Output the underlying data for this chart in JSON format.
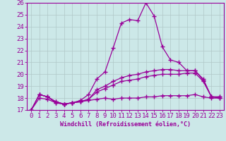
{
  "xlabel": "Windchill (Refroidissement éolien,°C)",
  "bg_color": "#cce8e8",
  "grid_color": "#b0c8c8",
  "line_color": "#990099",
  "xlim": [
    -0.5,
    23.5
  ],
  "ylim": [
    17,
    26
  ],
  "xticks": [
    0,
    1,
    2,
    3,
    4,
    5,
    6,
    7,
    8,
    9,
    10,
    11,
    12,
    13,
    14,
    15,
    16,
    17,
    18,
    19,
    20,
    21,
    22,
    23
  ],
  "yticks": [
    17,
    18,
    19,
    20,
    21,
    22,
    23,
    24,
    25,
    26
  ],
  "lines": [
    {
      "x": [
        0,
        1,
        2,
        3,
        4,
        5,
        6,
        7,
        8,
        9,
        10,
        11,
        12,
        13,
        14,
        15,
        16,
        17,
        18,
        19,
        20,
        21,
        22,
        23
      ],
      "y": [
        17.0,
        18.3,
        18.1,
        17.6,
        17.5,
        17.6,
        17.8,
        18.3,
        19.6,
        20.2,
        22.2,
        24.3,
        24.6,
        24.5,
        26.0,
        24.9,
        22.3,
        21.2,
        21.0,
        20.3,
        20.3,
        19.5,
        18.1,
        18.1
      ]
    },
    {
      "x": [
        0,
        1,
        2,
        3,
        4,
        5,
        6,
        7,
        8,
        9,
        10,
        11,
        12,
        13,
        14,
        15,
        16,
        17,
        18,
        19,
        20,
        21,
        22,
        23
      ],
      "y": [
        17.0,
        18.3,
        18.1,
        17.7,
        17.5,
        17.6,
        17.7,
        17.9,
        18.7,
        19.0,
        19.4,
        19.7,
        19.9,
        20.0,
        20.2,
        20.3,
        20.4,
        20.4,
        20.3,
        20.3,
        20.3,
        19.6,
        18.1,
        18.1
      ]
    },
    {
      "x": [
        0,
        1,
        2,
        3,
        4,
        5,
        6,
        7,
        8,
        9,
        10,
        11,
        12,
        13,
        14,
        15,
        16,
        17,
        18,
        19,
        20,
        21,
        22,
        23
      ],
      "y": [
        17.0,
        18.3,
        18.1,
        17.7,
        17.5,
        17.6,
        17.7,
        17.9,
        18.5,
        18.8,
        19.1,
        19.4,
        19.5,
        19.6,
        19.8,
        19.9,
        20.0,
        20.0,
        20.0,
        20.1,
        20.1,
        19.4,
        18.1,
        18.0
      ]
    },
    {
      "x": [
        0,
        1,
        2,
        3,
        4,
        5,
        6,
        7,
        8,
        9,
        10,
        11,
        12,
        13,
        14,
        15,
        16,
        17,
        18,
        19,
        20,
        21,
        22,
        23
      ],
      "y": [
        17.0,
        18.0,
        17.9,
        17.6,
        17.5,
        17.6,
        17.7,
        17.8,
        17.9,
        18.0,
        17.9,
        18.0,
        18.0,
        18.0,
        18.1,
        18.1,
        18.2,
        18.2,
        18.2,
        18.2,
        18.3,
        18.1,
        18.0,
        18.0
      ]
    }
  ],
  "marker": "+",
  "markersize": 4,
  "linewidth": 0.9,
  "tick_fontsize": 6.5,
  "xlabel_fontsize": 6.0
}
